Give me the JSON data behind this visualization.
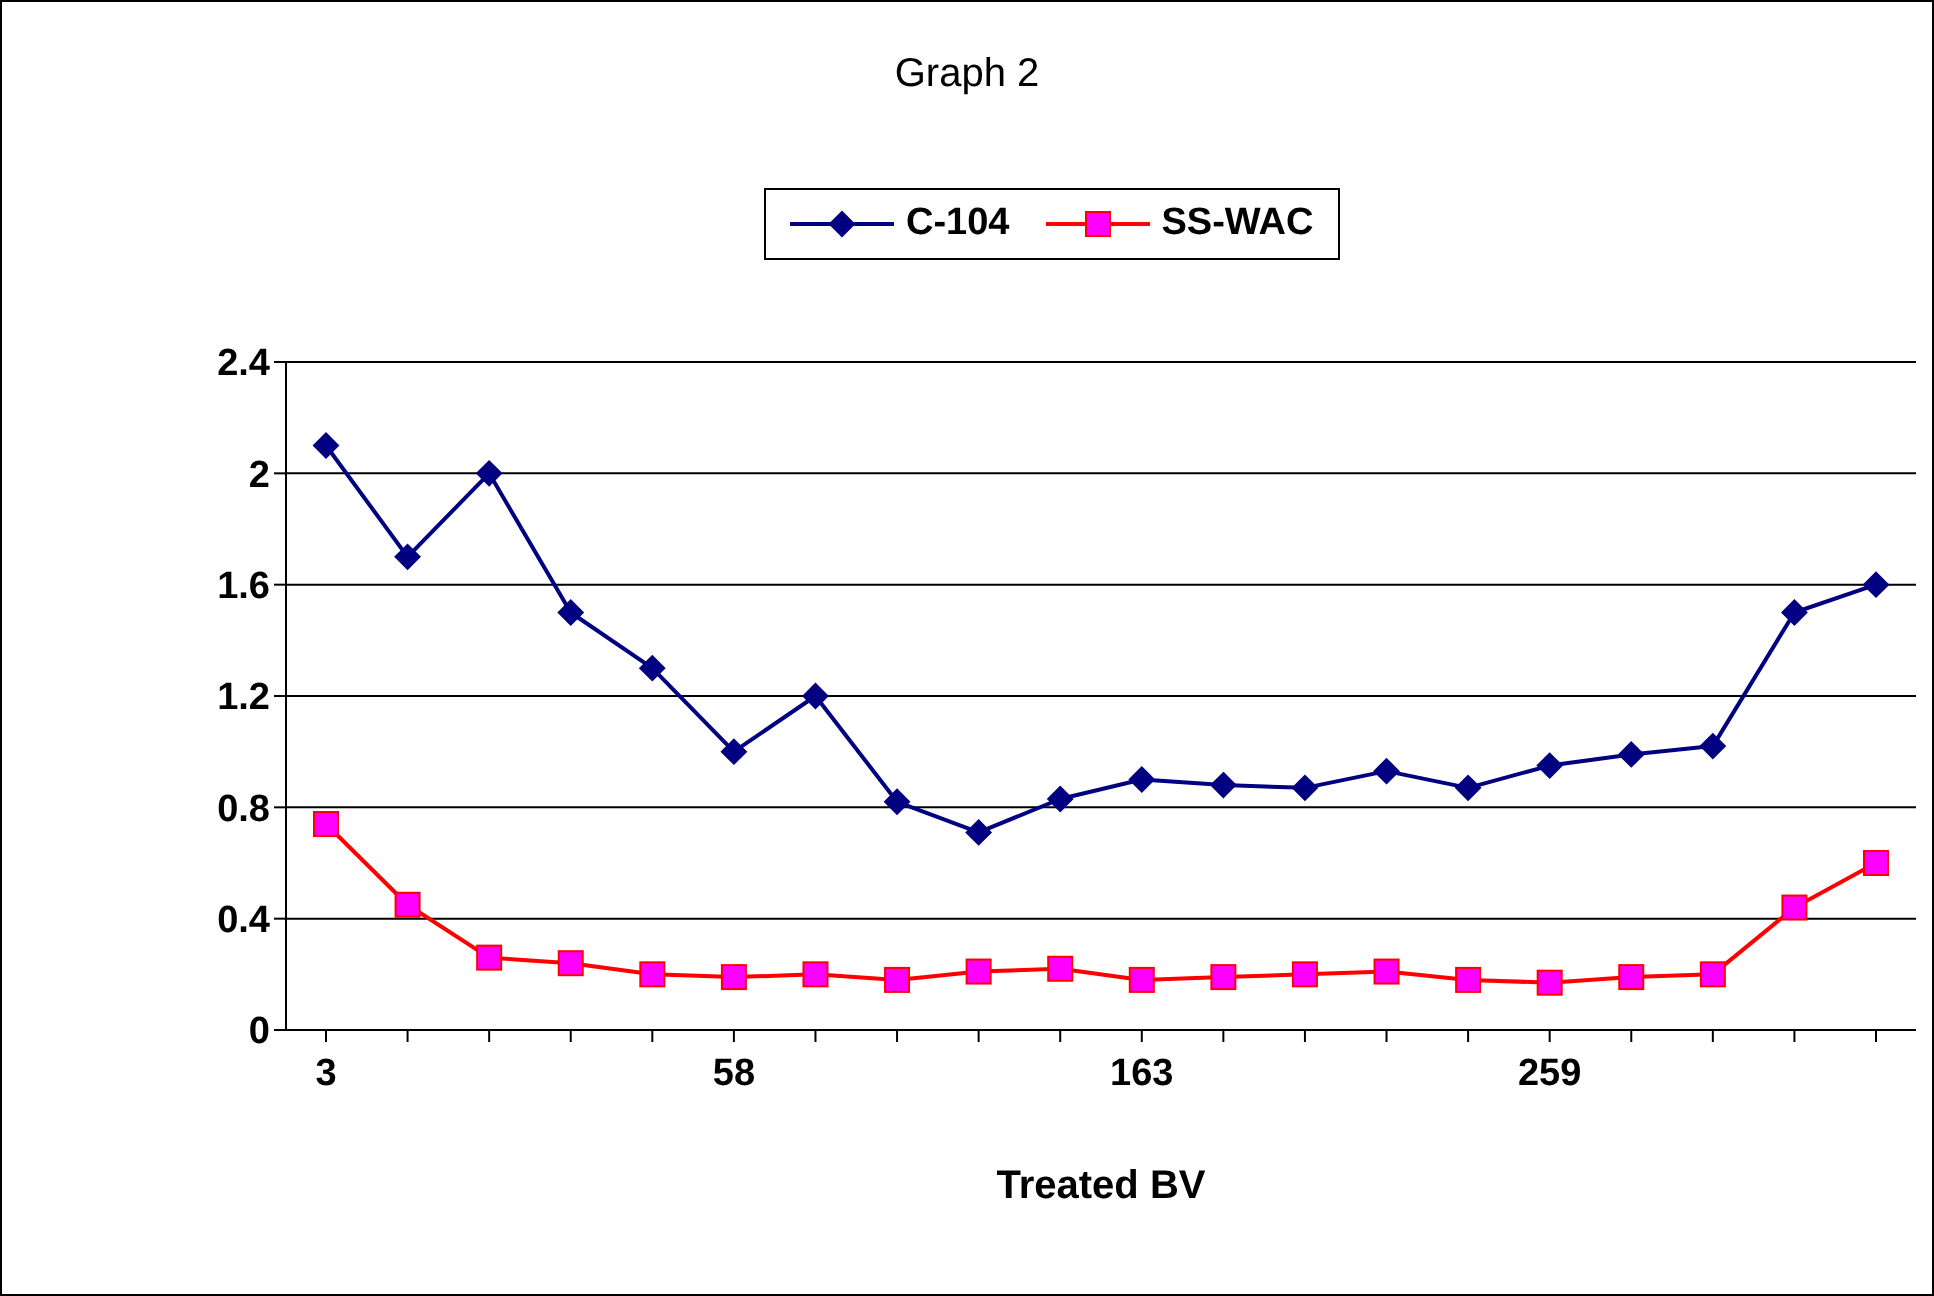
{
  "chart_data": {
    "type": "line",
    "title": "Graph 2",
    "xlabel": "Treated BV",
    "categories": [
      "3",
      null,
      null,
      null,
      null,
      "58",
      null,
      null,
      null,
      null,
      "163",
      null,
      null,
      null,
      null,
      "259",
      null,
      null,
      null,
      null
    ],
    "series": [
      {
        "name": "C-104",
        "color": "#000080",
        "marker": "diamond",
        "values": [
          2.1,
          1.7,
          2.0,
          1.5,
          1.3,
          1.0,
          1.2,
          0.82,
          0.71,
          0.83,
          0.9,
          0.88,
          0.87,
          0.93,
          0.87,
          0.95,
          0.99,
          1.02,
          1.5,
          1.6
        ]
      },
      {
        "name": "SS-WAC",
        "color": "#ff0000",
        "marker": "square",
        "values": [
          0.74,
          0.45,
          0.26,
          0.24,
          0.2,
          0.19,
          0.2,
          0.18,
          0.21,
          0.22,
          0.18,
          0.19,
          0.2,
          0.21,
          0.18,
          0.17,
          0.19,
          0.2,
          0.44,
          0.6
        ]
      }
    ],
    "ylim": [
      0,
      2.4
    ],
    "yticks": [
      0,
      0.4,
      0.8,
      1.2,
      1.6,
      2,
      2.4
    ],
    "grid": "y",
    "legend": "top"
  }
}
